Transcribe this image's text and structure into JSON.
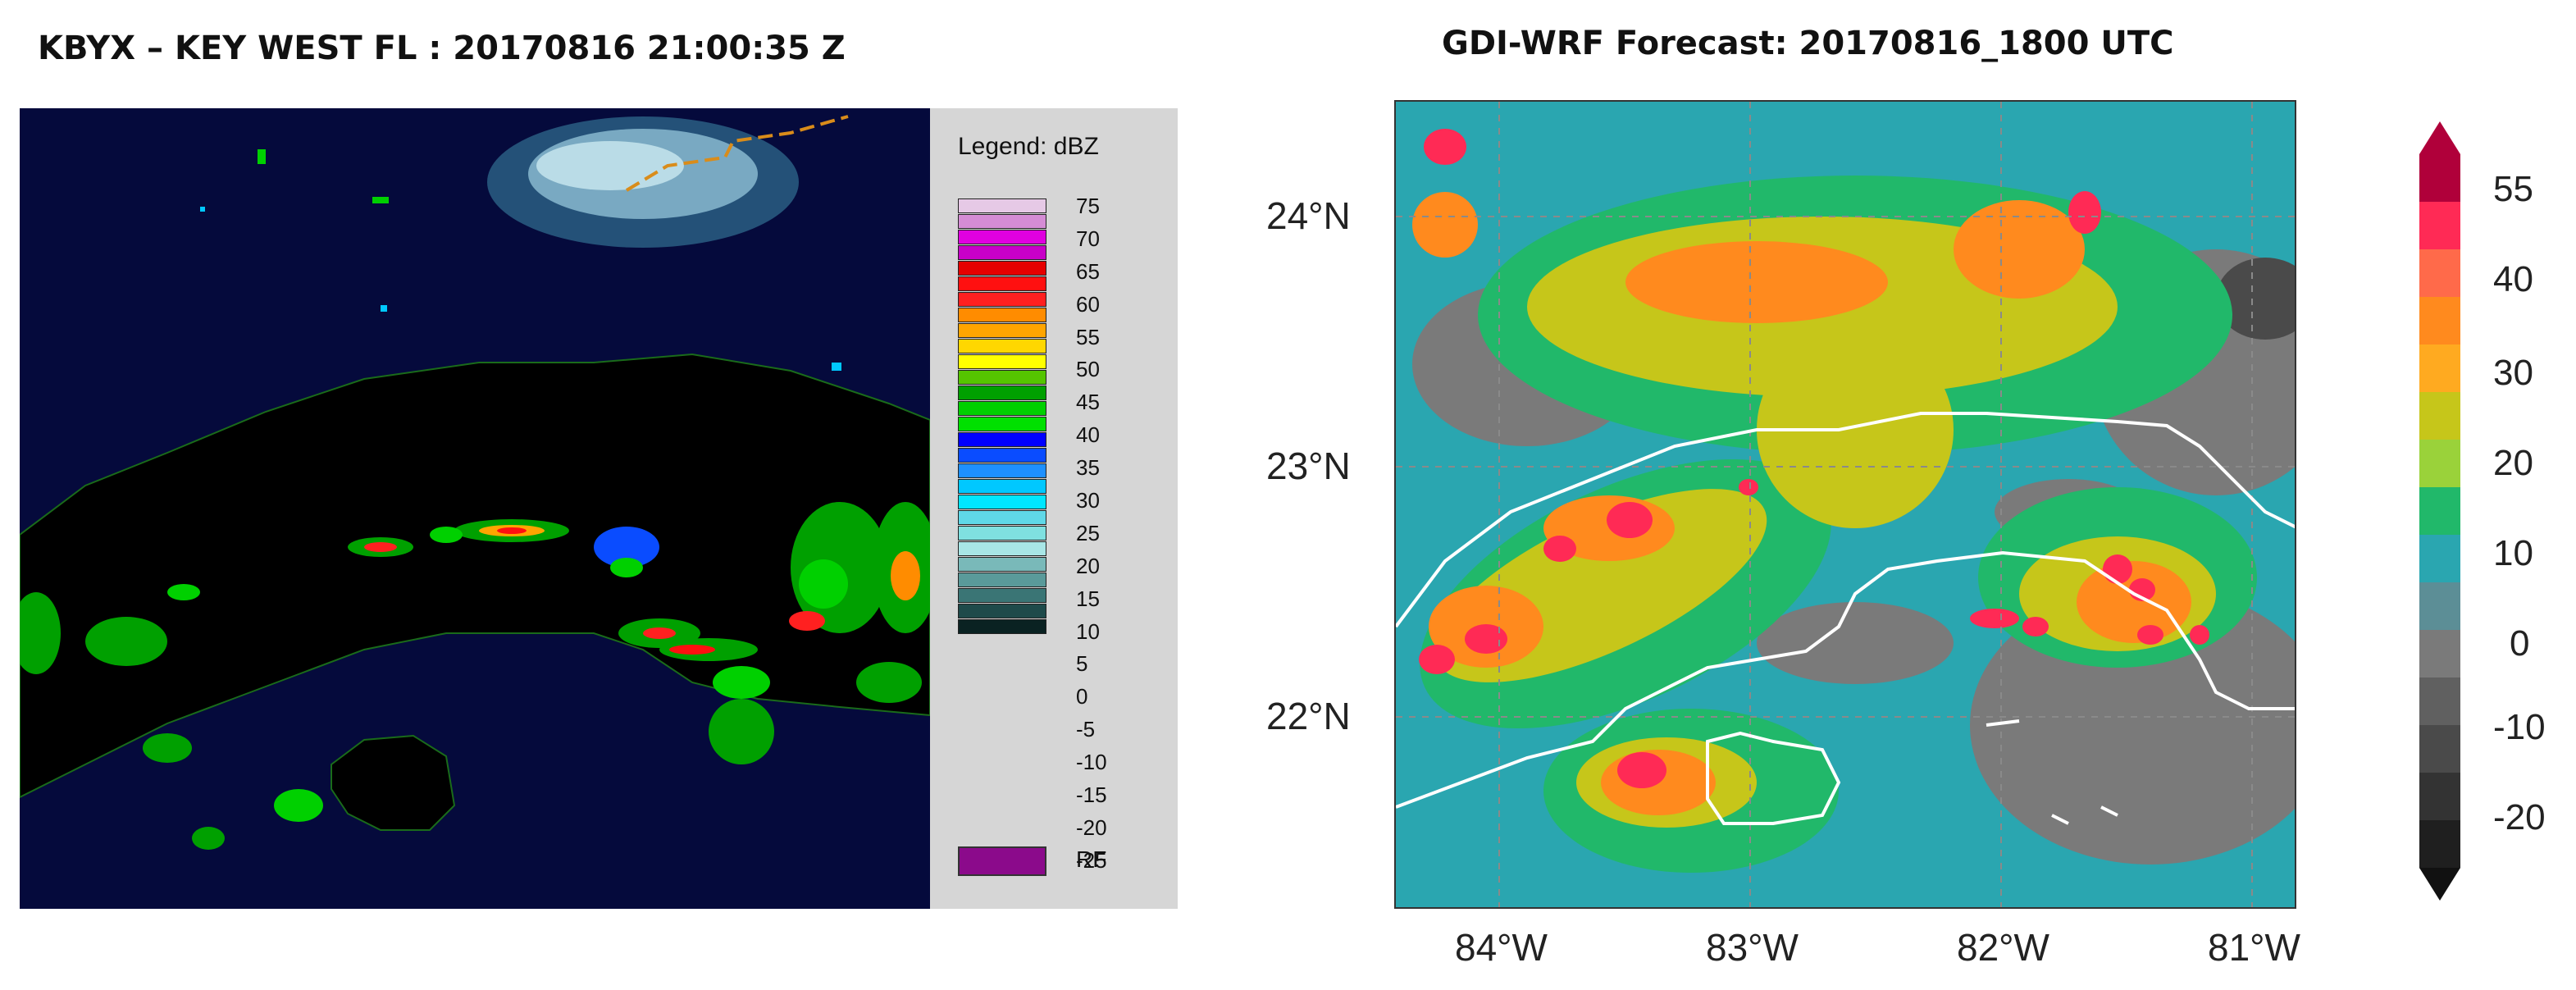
{
  "radar": {
    "title": "KBYX – KEY WEST FL : 20170816 21:00:35 Z",
    "legend_title": "Legend: dBZ",
    "legend_levels": [
      "75",
      "70",
      "65",
      "60",
      "55",
      "50",
      "45",
      "40",
      "35",
      "30",
      "25",
      "20",
      "15",
      "10",
      "5",
      "0",
      "-5",
      "-10",
      "-15",
      "-20",
      "-25"
    ],
    "legend_colors": [
      "#e6c9e6",
      "#d58cd5",
      "#e000e0",
      "#c800c8",
      "#e60000",
      "#ff1010",
      "#ff2020",
      "#ff8c00",
      "#ffa500",
      "#ffd700",
      "#ffff00",
      "#55c500",
      "#00a000",
      "#00d000",
      "#00e000",
      "#0000ff",
      "#0a4cff",
      "#1e90ff",
      "#00c8ff",
      "#00e6ff",
      "#5fd8e8",
      "#7fe0e0",
      "#a8e6e6",
      "#79b9b9",
      "#5a9a9a",
      "#3a7575",
      "#1e4a4a",
      "#0a2222"
    ],
    "rf_label": "RF",
    "rf_color": "#8b0a8b",
    "background_color": "#050a3c",
    "land_color": "#000000",
    "outline_color": "#1a6b1a"
  },
  "forecast": {
    "title": "GDI-WRF  Forecast: 20170816_1800 UTC",
    "lat_labels": [
      "24°N",
      "23°N",
      "22°N"
    ],
    "lon_labels": [
      "84°W",
      "83°W",
      "82°W",
      "81°W"
    ],
    "colorbar_labels": [
      "55",
      "40",
      "30",
      "20",
      "10",
      "0",
      "-10",
      "-20"
    ],
    "colorbar_colors": [
      "#b0003a",
      "#ff2a55",
      "#ff8a1e",
      "#c6c61a",
      "#21b86a",
      "#2aa6b0",
      "#7a7a7a",
      "#4a4a4a",
      "#1f1f1f"
    ],
    "coast_color": "#ffffff"
  }
}
